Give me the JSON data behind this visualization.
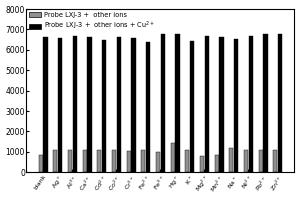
{
  "categories": [
    "blank",
    "Ag$^+$",
    "Al$^{3+}$",
    "Ca$^{2+}$",
    "Cd$^{2+}$",
    "Co$^{2+}$",
    "Cr$^{3+}$",
    "Fe$^{2+}$",
    "Fe$^{3+}$",
    "Hg$^+$",
    "K$^+$",
    "Mg$^{2+}$",
    "Mn$^{2+}$",
    "Na$^+$",
    "Ni$^{2+}$",
    "Pb$^{2+}$",
    "Zn$^{2+}$"
  ],
  "gray_values": [
    820,
    1080,
    1100,
    1100,
    1100,
    1080,
    1050,
    1100,
    1000,
    1430,
    1100,
    800,
    850,
    1200,
    1100,
    1100,
    1100
  ],
  "black_values": [
    6650,
    6600,
    6700,
    6650,
    6500,
    6650,
    6600,
    6400,
    6800,
    6800,
    6450,
    6700,
    6650,
    6550,
    6700,
    6800,
    6800
  ],
  "gray_color": "#909090",
  "black_color": "#000000",
  "ylim": [
    0,
    8000
  ],
  "yticks": [
    0,
    1000,
    2000,
    3000,
    4000,
    5000,
    6000,
    7000,
    8000
  ],
  "legend_gray": "Probe LXJ-3 +  other ions",
  "legend_black": "Probe LXJ-3 +  other ions + Cu$^{2+}$",
  "figsize": [
    3.0,
    2.0
  ],
  "dpi": 100
}
